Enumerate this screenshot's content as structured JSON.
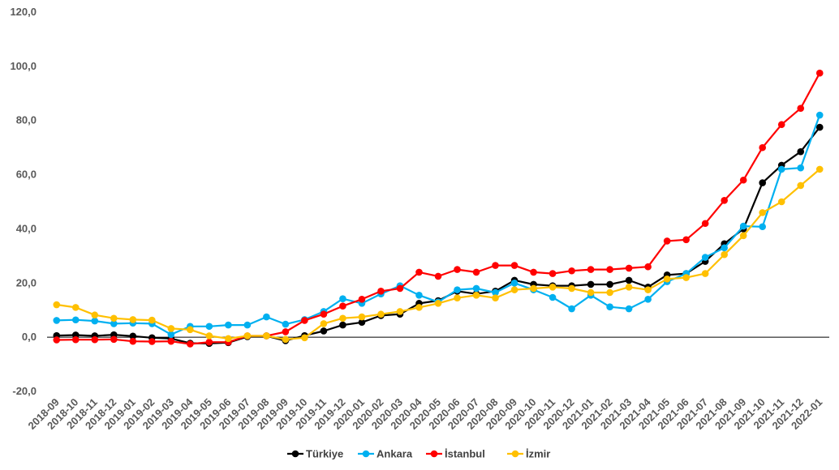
{
  "chart_data": {
    "type": "line",
    "title": "",
    "xlabel": "",
    "ylabel": "",
    "ylim": [
      -20,
      120
    ],
    "yticks": [
      -20,
      0,
      20,
      40,
      60,
      80,
      100,
      120
    ],
    "ytick_labels": [
      "-20,0",
      "0,0",
      "20,0",
      "40,0",
      "60,0",
      "80,0",
      "100,0",
      "120,0"
    ],
    "grid": false,
    "legend_position": "bottom",
    "categories": [
      "2018-09",
      "2018-10",
      "2018-11",
      "2018-12",
      "2019-01",
      "2019-02",
      "2019-03",
      "2019-04",
      "2019-05",
      "2019-06",
      "2019-07",
      "2019-08",
      "2019-09",
      "2019-10",
      "2019-11",
      "2019-12",
      "2020-01",
      "2020-02",
      "2020-03",
      "2020-04",
      "2020-05",
      "2020-06",
      "2020-07",
      "2020-08",
      "2020-09",
      "2020-10",
      "2020-11",
      "2020-12",
      "2021-01",
      "2021-02",
      "2021-03",
      "2021-04",
      "2021-05",
      "2021-06",
      "2021-07",
      "2021-08",
      "2021-09",
      "2021-10",
      "2021-11",
      "2021-12",
      "2022-01"
    ],
    "series": [
      {
        "name": "Türkiye",
        "color": "#000000",
        "values": [
          0.6,
          0.8,
          0.5,
          0.9,
          0.4,
          -0.2,
          -0.5,
          -2.2,
          -2.3,
          -2.0,
          0.2,
          0.5,
          -1.3,
          0.6,
          2.3,
          4.5,
          5.5,
          8.0,
          8.5,
          12.5,
          13.5,
          17.0,
          16.0,
          17.0,
          21.0,
          19.5,
          19.0,
          19.0,
          19.5,
          19.5,
          21.0,
          18.5,
          23.0,
          23.5,
          28.0,
          34.5,
          40.0,
          57.0,
          63.5,
          68.5,
          77.5
        ]
      },
      {
        "name": "Ankara",
        "color": "#00b0f0",
        "values": [
          6.2,
          6.4,
          6.0,
          5.0,
          5.2,
          5.0,
          1.0,
          4.0,
          4.0,
          4.5,
          4.5,
          7.5,
          4.8,
          6.5,
          9.5,
          14.2,
          12.5,
          16.0,
          19.0,
          15.5,
          13.0,
          17.5,
          18.0,
          16.5,
          20.0,
          17.5,
          14.7,
          10.5,
          15.5,
          11.2,
          10.5,
          14.0,
          20.5,
          23.5,
          29.5,
          33.0,
          41.0,
          40.8,
          62.0,
          62.5,
          82.0
        ]
      },
      {
        "name": "İstanbul",
        "color": "#ff0000",
        "values": [
          -1.0,
          -0.9,
          -0.9,
          -0.8,
          -1.5,
          -1.6,
          -1.5,
          -2.5,
          -1.8,
          -1.8,
          0.5,
          0.5,
          2.0,
          6.2,
          8.5,
          11.5,
          14.0,
          17.0,
          18.0,
          24.0,
          22.5,
          25.0,
          24.0,
          26.5,
          26.5,
          24.0,
          23.5,
          24.5,
          25.0,
          25.0,
          25.5,
          26.0,
          35.5,
          36.0,
          42.0,
          50.5,
          58.0,
          70.0,
          78.5,
          84.5,
          97.5
        ]
      },
      {
        "name": "İzmir",
        "color": "#ffc000",
        "values": [
          12.0,
          11.0,
          8.2,
          7.0,
          6.5,
          6.3,
          3.2,
          2.8,
          0.5,
          -0.5,
          0.5,
          0.5,
          -0.8,
          -0.2,
          5.0,
          7.0,
          7.5,
          8.5,
          9.5,
          11.0,
          12.5,
          14.5,
          15.5,
          14.5,
          17.5,
          18.0,
          18.5,
          18.0,
          16.5,
          16.5,
          18.5,
          17.5,
          21.5,
          22.0,
          23.5,
          30.5,
          37.5,
          46.0,
          50.0,
          56.0,
          62.0
        ]
      }
    ]
  }
}
